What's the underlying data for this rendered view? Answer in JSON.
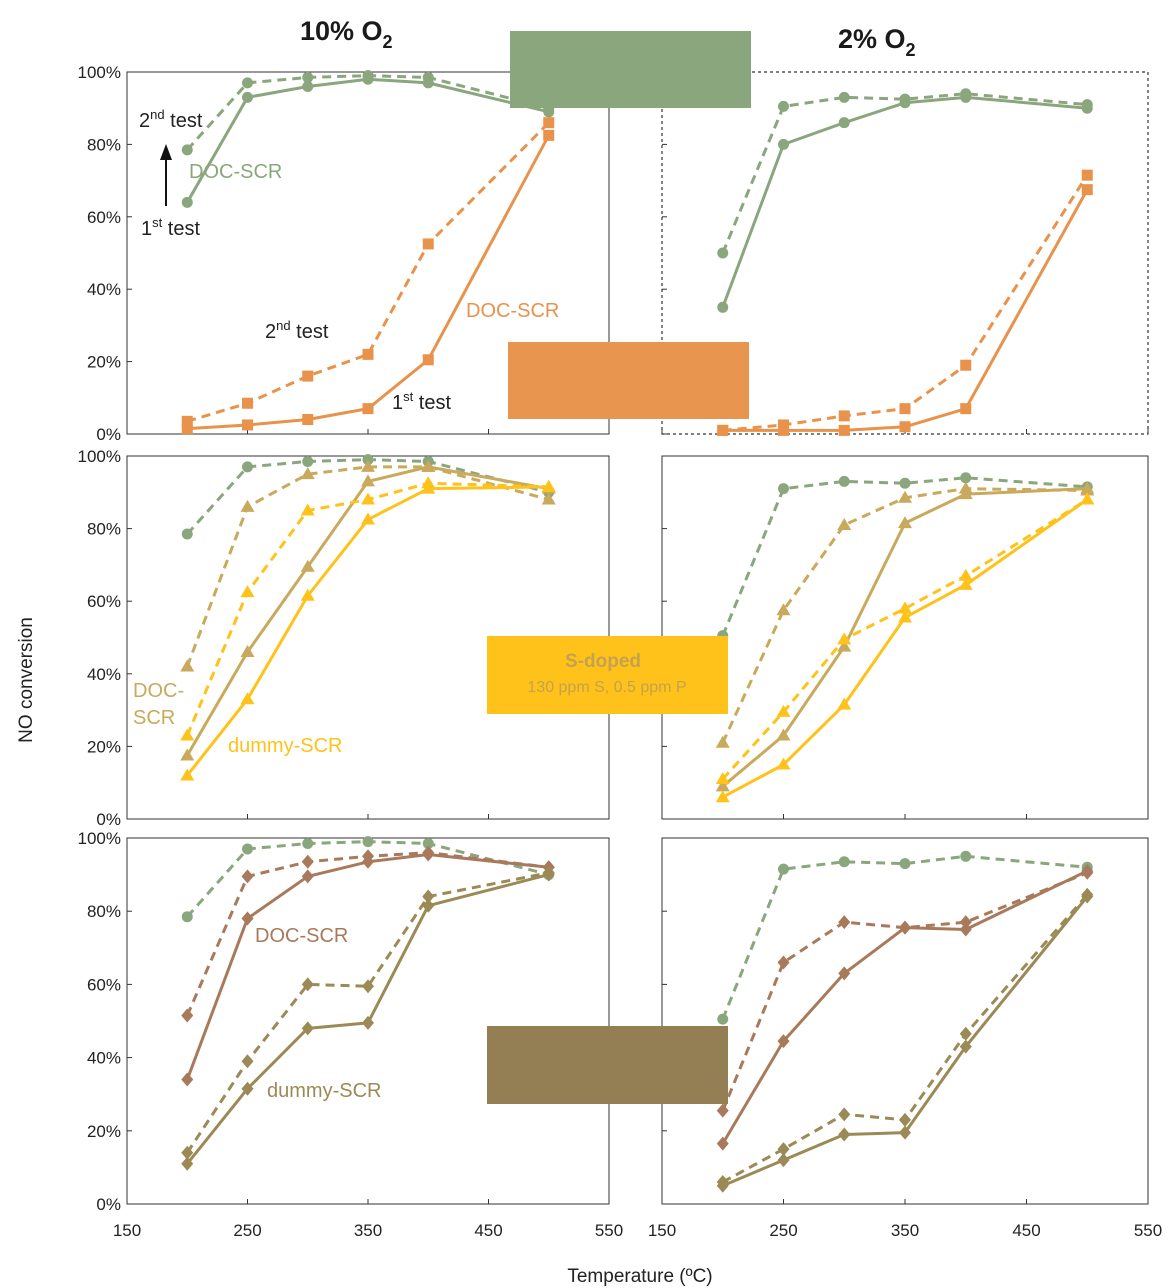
{
  "colors": {
    "green": "#8aa67d",
    "orange": "#e8924b",
    "gold": "#c9a95b",
    "yellow": "#ffc21a",
    "brown": "#a87a5b",
    "olive": "#9b8a55",
    "olive_box": "#947f55",
    "box_text": "#c4a24e"
  },
  "columns": [
    {
      "title_main": "10% O",
      "title_sub": "2"
    },
    {
      "title_main": "2% O",
      "title_sub": "2"
    }
  ],
  "axes": {
    "xlabel": "Temperature (ºC)",
    "ylabel": "NO conversion",
    "x_ticks": [
      "150",
      "250",
      "350",
      "450",
      "550"
    ],
    "y_ticks": [
      "0%",
      "20%",
      "40%",
      "60%",
      "80%",
      "100%"
    ],
    "xlim": [
      150,
      550
    ],
    "ylim": [
      0,
      100
    ]
  },
  "annotations": {
    "p00_second_test_main": "2",
    "p00_second_test_sup": "nd",
    "p00_second_test_text": " test",
    "p00_first_test_main": "1",
    "p00_first_test_sup": "st",
    "p00_first_test_text": " test",
    "p00_doc_green": "DOC-SCR",
    "p00_doc_orange": "DOC-SCR",
    "p00_second_test2_main": "2",
    "p00_second_test2_sup": "nd",
    "p00_second_test2_text": " test",
    "p00_first_test2_main": "1",
    "p00_first_test2_sup": "st",
    "p00_first_test2_text": " test",
    "p10_doc_line1": "DOC-",
    "p10_doc_line2": "SCR",
    "p10_dummy": "dummy-SCR",
    "s_doped_title": "S-doped",
    "s_doped_sub": "130 ppm S, 0.5 ppm P",
    "p20_doc": "DOC-SCR",
    "p20_dummy": "dummy-SCR"
  },
  "chart_data": [
    {
      "type": "line",
      "panel": "top-left",
      "xlim": [
        150,
        550
      ],
      "ylim": [
        0,
        100
      ],
      "series": [
        {
          "color": "green",
          "style": "solid",
          "marker": "circle",
          "x": [
            200,
            250,
            300,
            350,
            400,
            500
          ],
          "y": [
            64,
            93,
            96,
            98,
            97,
            89
          ]
        },
        {
          "color": "green",
          "style": "dashed",
          "marker": "circle",
          "x": [
            200,
            250,
            300,
            350,
            400,
            500
          ],
          "y": [
            78.5,
            97,
            98.5,
            99,
            98.5,
            90
          ]
        },
        {
          "color": "orange",
          "style": "solid",
          "marker": "square",
          "x": [
            200,
            250,
            300,
            350,
            400,
            500
          ],
          "y": [
            1.5,
            2.5,
            4,
            7,
            20.5,
            82.5
          ]
        },
        {
          "color": "orange",
          "style": "dashed",
          "marker": "square",
          "x": [
            200,
            250,
            300,
            350,
            400,
            500
          ],
          "y": [
            3.5,
            8.5,
            16,
            22,
            52.5,
            86
          ]
        }
      ]
    },
    {
      "type": "line",
      "panel": "top-right",
      "xlim": [
        150,
        550
      ],
      "ylim": [
        0,
        100
      ],
      "series": [
        {
          "color": "green",
          "style": "solid",
          "marker": "circle",
          "x": [
            200,
            250,
            300,
            350,
            400,
            500
          ],
          "y": [
            35,
            80,
            86,
            91.5,
            93,
            90
          ]
        },
        {
          "color": "green",
          "style": "dashed",
          "marker": "circle",
          "x": [
            200,
            250,
            300,
            350,
            400,
            500
          ],
          "y": [
            50,
            90.5,
            93,
            92.5,
            94,
            91
          ]
        },
        {
          "color": "orange",
          "style": "solid",
          "marker": "square",
          "x": [
            200,
            250,
            300,
            350,
            400,
            500
          ],
          "y": [
            1,
            1,
            1,
            2,
            7,
            67.5
          ]
        },
        {
          "color": "orange",
          "style": "dashed",
          "marker": "square",
          "x": [
            200,
            250,
            300,
            350,
            400,
            500
          ],
          "y": [
            1,
            2.5,
            5,
            7,
            19,
            71.5
          ]
        }
      ]
    },
    {
      "type": "line",
      "panel": "middle-left",
      "xlim": [
        150,
        550
      ],
      "ylim": [
        0,
        100
      ],
      "series": [
        {
          "color": "green",
          "style": "dashed",
          "marker": "circle",
          "x": [
            200,
            250,
            300,
            350,
            400,
            500
          ],
          "y": [
            78.5,
            97,
            98.5,
            99,
            98.5,
            90
          ]
        },
        {
          "color": "gold",
          "style": "solid",
          "marker": "triangle",
          "x": [
            200,
            250,
            300,
            350,
            400,
            500
          ],
          "y": [
            17.5,
            46,
            69.5,
            93,
            97,
            91
          ]
        },
        {
          "color": "gold",
          "style": "dashed",
          "marker": "triangle",
          "x": [
            200,
            250,
            300,
            350,
            400,
            500
          ],
          "y": [
            42,
            86,
            95,
            97,
            97,
            88
          ]
        },
        {
          "color": "yellow",
          "style": "solid",
          "marker": "triangle",
          "x": [
            200,
            250,
            300,
            350,
            400,
            500
          ],
          "y": [
            12,
            33,
            61.5,
            82.5,
            91,
            91.5
          ]
        },
        {
          "color": "yellow",
          "style": "dashed",
          "marker": "triangle",
          "x": [
            200,
            250,
            300,
            350,
            400,
            500
          ],
          "y": [
            23,
            62.5,
            85,
            88,
            92.5,
            91.5
          ]
        }
      ]
    },
    {
      "type": "line",
      "panel": "middle-right",
      "xlim": [
        150,
        550
      ],
      "ylim": [
        0,
        100
      ],
      "series": [
        {
          "color": "green",
          "style": "dashed",
          "marker": "circle",
          "x": [
            200,
            250,
            300,
            350,
            400,
            500
          ],
          "y": [
            50.5,
            91,
            93,
            92.5,
            94,
            91.5
          ]
        },
        {
          "color": "gold",
          "style": "solid",
          "marker": "triangle",
          "x": [
            200,
            250,
            300,
            350,
            400,
            500
          ],
          "y": [
            9,
            23,
            47.5,
            81.5,
            89.5,
            91
          ]
        },
        {
          "color": "gold",
          "style": "dashed",
          "marker": "triangle",
          "x": [
            200,
            250,
            300,
            350,
            400,
            500
          ],
          "y": [
            21,
            57.5,
            81,
            88.5,
            91,
            90.5
          ]
        },
        {
          "color": "yellow",
          "style": "solid",
          "marker": "triangle",
          "x": [
            200,
            250,
            300,
            350,
            400,
            500
          ],
          "y": [
            6,
            15,
            31.5,
            55.5,
            64.5,
            88
          ]
        },
        {
          "color": "yellow",
          "style": "dashed",
          "marker": "triangle",
          "x": [
            200,
            250,
            300,
            350,
            400,
            500
          ],
          "y": [
            11,
            29.5,
            49.5,
            58,
            67,
            88
          ]
        }
      ]
    },
    {
      "type": "line",
      "panel": "bottom-left",
      "xlim": [
        150,
        550
      ],
      "ylim": [
        0,
        100
      ],
      "series": [
        {
          "color": "green",
          "style": "dashed",
          "marker": "circle",
          "x": [
            200,
            250,
            300,
            350,
            400,
            500
          ],
          "y": [
            78.5,
            97,
            98.5,
            99,
            98.5,
            90
          ]
        },
        {
          "color": "brown",
          "style": "solid",
          "marker": "diamond",
          "x": [
            200,
            250,
            300,
            350,
            400,
            500
          ],
          "y": [
            34,
            78,
            89.5,
            93.5,
            95.5,
            92
          ]
        },
        {
          "color": "brown",
          "style": "dashed",
          "marker": "diamond",
          "x": [
            200,
            250,
            300,
            350,
            400,
            500
          ],
          "y": [
            51.5,
            89.5,
            93.5,
            95,
            96,
            92
          ]
        },
        {
          "color": "olive",
          "style": "solid",
          "marker": "diamond",
          "x": [
            200,
            250,
            300,
            350,
            400,
            500
          ],
          "y": [
            11,
            31.5,
            48,
            49.5,
            81.5,
            90
          ]
        },
        {
          "color": "olive",
          "style": "dashed",
          "marker": "diamond",
          "x": [
            200,
            250,
            300,
            350,
            400,
            500
          ],
          "y": [
            14,
            39,
            60,
            59.5,
            84,
            90.5
          ]
        }
      ]
    },
    {
      "type": "line",
      "panel": "bottom-right",
      "xlim": [
        150,
        550
      ],
      "ylim": [
        0,
        100
      ],
      "series": [
        {
          "color": "green",
          "style": "dashed",
          "marker": "circle",
          "x": [
            200,
            250,
            300,
            350,
            400,
            500
          ],
          "y": [
            50.5,
            91.5,
            93.5,
            93,
            95,
            92
          ]
        },
        {
          "color": "brown",
          "style": "solid",
          "marker": "diamond",
          "x": [
            200,
            250,
            300,
            350,
            400,
            500
          ],
          "y": [
            16.5,
            44.5,
            63,
            75.5,
            75,
            91
          ]
        },
        {
          "color": "brown",
          "style": "dashed",
          "marker": "diamond",
          "x": [
            200,
            250,
            300,
            350,
            400,
            500
          ],
          "y": [
            25.5,
            66,
            77,
            75.5,
            77,
            90.5
          ]
        },
        {
          "color": "olive",
          "style": "solid",
          "marker": "diamond",
          "x": [
            200,
            250,
            300,
            350,
            400,
            500
          ],
          "y": [
            5,
            12,
            19,
            19.5,
            43,
            84
          ]
        },
        {
          "color": "olive",
          "style": "dashed",
          "marker": "diamond",
          "x": [
            200,
            250,
            300,
            350,
            400,
            500
          ],
          "y": [
            6,
            15,
            24.5,
            23,
            46.5,
            84.5
          ]
        }
      ]
    }
  ]
}
